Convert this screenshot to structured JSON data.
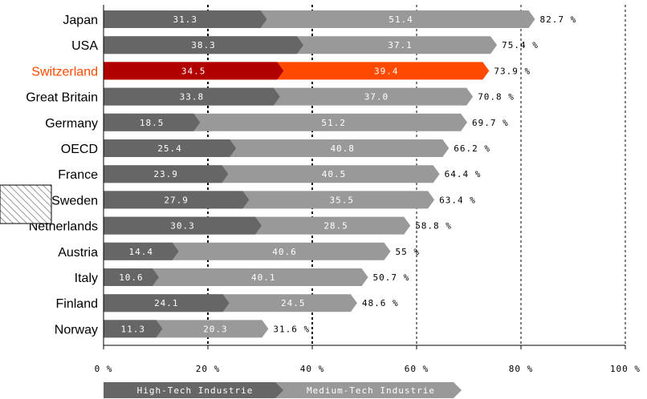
{
  "chart_data": {
    "type": "bar",
    "stacked": true,
    "orientation": "horizontal",
    "categories": [
      "Japan",
      "USA",
      "Switzerland",
      "Great Britain",
      "Germany",
      "OECD",
      "France",
      "Sweden",
      "Netherlands",
      "Austria",
      "Italy",
      "Finland",
      "Norway"
    ],
    "highlight": "Switzerland",
    "series": [
      {
        "name": "High-Tech Industrie",
        "values": [
          31.3,
          38.3,
          34.5,
          33.8,
          18.5,
          25.4,
          23.9,
          27.9,
          30.3,
          14.4,
          10.6,
          24.1,
          11.3
        ],
        "labels": [
          "31.3",
          "38.3",
          "34.5",
          "33.8",
          "18.5",
          "25.4",
          "23.9",
          "27.9",
          "30.3",
          "14.4",
          "10.6",
          "24.1",
          "11.3"
        ]
      },
      {
        "name": "Medium-Tech Industrie",
        "values": [
          51.4,
          37.1,
          39.4,
          37.0,
          51.2,
          40.8,
          40.5,
          35.5,
          28.5,
          40.6,
          40.1,
          24.5,
          20.3
        ],
        "labels": [
          "51.4",
          "37.1",
          "39.4",
          "37.0",
          "51.2",
          "40.8",
          "40.5",
          "35.5",
          "28.5",
          "40.6",
          "40.1",
          "24.5",
          "20.3"
        ]
      }
    ],
    "totals": [
      82.7,
      75.4,
      73.9,
      70.8,
      69.7,
      66.2,
      64.4,
      63.4,
      58.8,
      55,
      50.7,
      48.6,
      31.6
    ],
    "total_labels": [
      "82.7 %",
      "75.4 %",
      "73.9 %",
      "70.8 %",
      "69.7 %",
      "66.2 %",
      "64.4 %",
      "63.4 %",
      "58.8 %",
      "55 %",
      "50.7 %",
      "48.6 %",
      "31.6 %"
    ],
    "xlim": [
      0,
      100
    ],
    "xticks": [
      0,
      20,
      40,
      60,
      80,
      100
    ],
    "xtick_labels": [
      "0 %",
      "20 %",
      "40 %",
      "60 %",
      "80 %",
      "100 %"
    ],
    "ref_lines": [
      20,
      40,
      60,
      80,
      100
    ],
    "legend": [
      "High-Tech Industrie",
      "Medium-Tech Industrie"
    ],
    "colors": {
      "high": "#666666",
      "medium": "#999999",
      "high_hl": "#b10000",
      "medium_hl": "#ff4a00",
      "label_hl": "#ff4a00"
    }
  }
}
